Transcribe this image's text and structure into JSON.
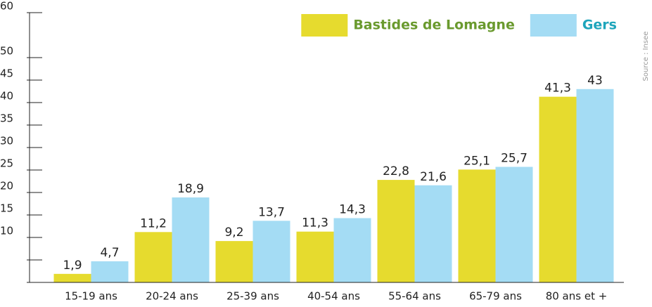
{
  "chart_data": {
    "type": "bar",
    "categories": [
      "15-19 ans",
      "20-24 ans",
      "25-39 ans",
      "40-54 ans",
      "55-64 ans",
      "65-79 ans",
      "80 ans et +"
    ],
    "series": [
      {
        "name": "Bastides de Lomagne",
        "color": "#e6db2e",
        "legend_color": "#6a9a2e",
        "values": [
          1.9,
          11.2,
          9.2,
          11.3,
          22.8,
          25.1,
          41.3
        ],
        "value_labels": [
          "1,9",
          "11,2",
          "9,2",
          "11,3",
          "22,8",
          "25,1",
          "41,3"
        ]
      },
      {
        "name": "Gers",
        "color": "#a4dcf4",
        "legend_color": "#1ea5bb",
        "values": [
          4.7,
          18.9,
          13.7,
          14.3,
          21.6,
          25.7,
          43
        ],
        "value_labels": [
          "4,7",
          "18,9",
          "13,7",
          "14,3",
          "21,6",
          "25,7",
          "43"
        ]
      }
    ],
    "ylim": [
      0,
      60
    ],
    "yticks": [
      10,
      15,
      20,
      25,
      30,
      35,
      40,
      45,
      50,
      60
    ],
    "minor_yticks": [
      5
    ],
    "legend": "top-right",
    "note": "Source : Insee"
  }
}
